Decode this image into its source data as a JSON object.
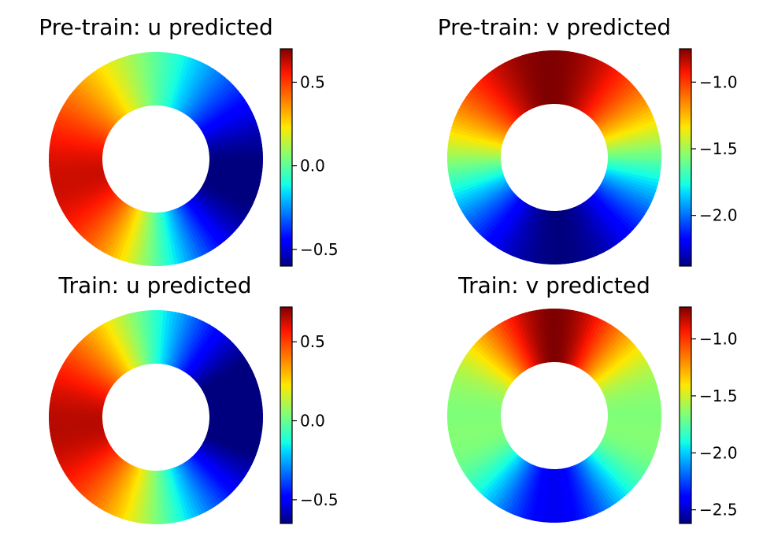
{
  "chart_data": [
    {
      "type": "heatmap",
      "title": "Pre-train: u predicted",
      "colormap": "jet",
      "colorbar": {
        "range": [
          -0.6,
          0.7
        ],
        "ticks": [
          0.5,
          0.0,
          -0.5
        ],
        "tick_labels": [
          "0.5",
          "0.0",
          "−0.5"
        ]
      },
      "field": {
        "inner_radius_ratio": 0.5,
        "hot_side": "left",
        "cold_side": "right"
      }
    },
    {
      "type": "heatmap",
      "title": "Pre-train: v predicted",
      "colormap": "jet",
      "colorbar": {
        "range": [
          -2.38,
          -0.75
        ],
        "ticks": [
          -1.0,
          -1.5,
          -2.0
        ],
        "tick_labels": [
          "−1.0",
          "−1.5",
          "−2.0"
        ]
      },
      "field": {
        "inner_radius_ratio": 0.5,
        "hot_side": "top",
        "cold_side": "bottom"
      }
    },
    {
      "type": "heatmap",
      "title": "Train: u predicted",
      "colormap": "jet",
      "colorbar": {
        "range": [
          -0.65,
          0.72
        ],
        "ticks": [
          0.5,
          0.0,
          -0.5
        ],
        "tick_labels": [
          "0.5",
          "0.0",
          "−0.5"
        ]
      },
      "field": {
        "inner_radius_ratio": 0.5,
        "hot_side": "left",
        "cold_side": "right"
      }
    },
    {
      "type": "heatmap",
      "title": "Train: v predicted",
      "colormap": "jet",
      "colorbar": {
        "range": [
          -2.62,
          -0.72
        ],
        "ticks": [
          -1.0,
          -1.5,
          -2.0,
          -2.5
        ],
        "tick_labels": [
          "−1.0",
          "−1.5",
          "−2.0",
          "−2.5"
        ]
      },
      "field": {
        "inner_radius_ratio": 0.5,
        "hot_side": "top",
        "cold_side": "bottom"
      }
    }
  ]
}
